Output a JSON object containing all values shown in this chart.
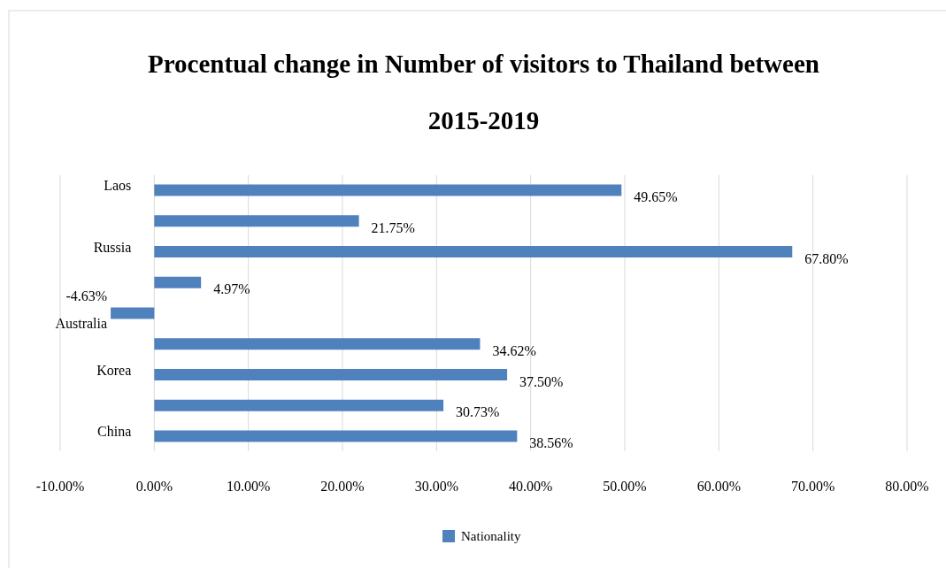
{
  "chart_data": {
    "type": "bar",
    "orientation": "horizontal",
    "title": "Procentual change in Number of visitors to Thailand between 2015-2019",
    "categories": [
      "Laos",
      null,
      "Russia",
      null,
      "Australia",
      null,
      "Korea",
      null,
      "China"
    ],
    "series": [
      {
        "name": "Nationality",
        "color": "#4f81bd",
        "values": [
          49.65,
          21.75,
          67.8,
          4.97,
          -4.63,
          34.62,
          37.5,
          30.73,
          38.56
        ],
        "value_labels": [
          "49.65%",
          "21.75%",
          "67.80%",
          "4.97%",
          "-4.63%",
          "34.62%",
          "37.50%",
          "30.73%",
          "38.56%"
        ]
      }
    ],
    "xlim": [
      -10,
      80
    ],
    "xticks": [
      {
        "value": -10,
        "label": "-10.00%"
      },
      {
        "value": 0,
        "label": "0.00%"
      },
      {
        "value": 10,
        "label": "10.00%"
      },
      {
        "value": 20,
        "label": "20.00%"
      },
      {
        "value": 30,
        "label": "30.00%"
      },
      {
        "value": 40,
        "label": "40.00%"
      },
      {
        "value": 50,
        "label": "50.00%"
      },
      {
        "value": 60,
        "label": "60.00%"
      },
      {
        "value": 70,
        "label": "70.00%"
      },
      {
        "value": 80,
        "label": "80.00%"
      }
    ],
    "grid": "x",
    "legend": "bottom"
  }
}
